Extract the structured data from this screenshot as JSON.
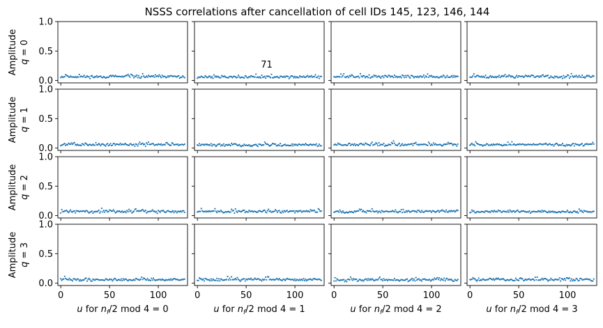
{
  "figure": {
    "title": "NSSS correlations after cancellation of cell IDs 145, 123, 146, 144"
  },
  "chart_data": {
    "type": "scatter",
    "grid": false,
    "legend": "none",
    "marker_color": "#1f77b4",
    "rows": 4,
    "cols": 4,
    "xlim": [
      -3,
      130
    ],
    "ylim": [
      -0.04,
      1.0
    ],
    "x_ticks": [
      0,
      50,
      100
    ],
    "y_ticks": [
      0.0,
      0.5,
      1.0
    ],
    "y_tick_labels": [
      "0.0",
      "0.5",
      "1.0"
    ],
    "ylabel": "Amplitude",
    "row_labels": [
      "q = 0",
      "q = 1",
      "q = 2",
      "q = 3"
    ],
    "col_labels": [
      "u for n_f/2 mod 4 = 0",
      "u for n_f/2 mod 4 = 1",
      "u for n_f/2 mod 4 = 2",
      "u for n_f/2 mod 4 = 3"
    ],
    "col_mod_values": [
      "0",
      "1",
      "2",
      "3"
    ],
    "annotation": {
      "text": "71",
      "row": 0,
      "col": 1,
      "x": 71,
      "y": 0.27
    },
    "x": "0..127 (u index, 128 points per panel)",
    "series_note": "noise-floor correlations, amplitude approx 0.02-0.16",
    "panels": [
      {
        "row": 0,
        "col": 0,
        "mean": 0.065,
        "spread": 0.035,
        "seed": 11
      },
      {
        "row": 0,
        "col": 1,
        "mean": 0.06,
        "spread": 0.035,
        "seed": 12
      },
      {
        "row": 0,
        "col": 2,
        "mean": 0.065,
        "spread": 0.035,
        "seed": 13
      },
      {
        "row": 0,
        "col": 3,
        "mean": 0.065,
        "spread": 0.04,
        "seed": 14
      },
      {
        "row": 1,
        "col": 0,
        "mean": 0.06,
        "spread": 0.035,
        "seed": 21
      },
      {
        "row": 1,
        "col": 1,
        "mean": 0.055,
        "spread": 0.035,
        "seed": 22
      },
      {
        "row": 1,
        "col": 2,
        "mean": 0.06,
        "spread": 0.035,
        "seed": 23
      },
      {
        "row": 1,
        "col": 3,
        "mean": 0.06,
        "spread": 0.035,
        "seed": 24
      },
      {
        "row": 2,
        "col": 0,
        "mean": 0.07,
        "spread": 0.035,
        "seed": 31
      },
      {
        "row": 2,
        "col": 1,
        "mean": 0.07,
        "spread": 0.035,
        "seed": 32
      },
      {
        "row": 2,
        "col": 2,
        "mean": 0.07,
        "spread": 0.035,
        "seed": 33
      },
      {
        "row": 2,
        "col": 3,
        "mean": 0.065,
        "spread": 0.03,
        "seed": 34
      },
      {
        "row": 3,
        "col": 0,
        "mean": 0.06,
        "spread": 0.035,
        "seed": 41
      },
      {
        "row": 3,
        "col": 1,
        "mean": 0.06,
        "spread": 0.035,
        "seed": 42
      },
      {
        "row": 3,
        "col": 2,
        "mean": 0.055,
        "spread": 0.035,
        "seed": 43
      },
      {
        "row": 3,
        "col": 3,
        "mean": 0.06,
        "spread": 0.04,
        "seed": 44
      }
    ]
  }
}
